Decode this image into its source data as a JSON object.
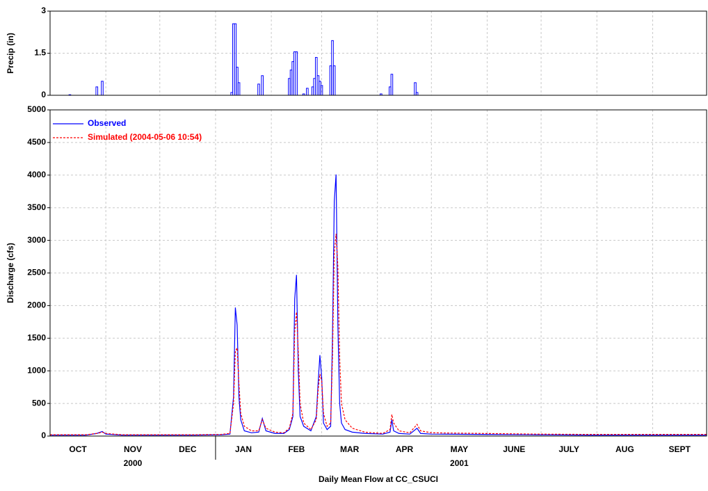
{
  "chart_data": [
    {
      "type": "bar",
      "ylabel": "Precip (in)",
      "color": "#0000ff",
      "x": [
        11,
        26,
        29,
        101,
        102,
        103,
        104,
        105,
        116,
        118,
        133,
        134,
        135,
        136,
        137,
        141,
        143,
        146,
        147,
        148,
        149,
        150,
        151,
        156,
        157,
        158,
        184,
        189,
        190,
        203,
        204
      ],
      "values": [
        0.02,
        0.3,
        0.5,
        0.1,
        2.55,
        2.55,
        1.0,
        0.45,
        0.4,
        0.7,
        0.6,
        0.9,
        1.2,
        1.55,
        1.55,
        0.05,
        0.25,
        0.3,
        0.6,
        1.35,
        0.7,
        0.5,
        0.35,
        1.05,
        1.95,
        1.05,
        0.05,
        0.3,
        0.75,
        0.45,
        0.1
      ],
      "xlim": [
        0,
        365
      ],
      "ylim": [
        0,
        3
      ],
      "yticks": [
        0,
        1.5,
        3
      ],
      "xgrid": [
        31,
        61,
        92,
        123,
        151,
        182,
        212,
        243,
        273,
        304,
        335
      ],
      "grid": true
    },
    {
      "type": "line",
      "title": "Daily Mean Flow at CC_CSUCI",
      "ylabel": "Discharge (cfs)",
      "x": [
        0,
        10,
        20,
        26,
        29,
        31,
        40,
        60,
        80,
        95,
        100,
        102,
        103,
        104,
        105,
        106,
        108,
        112,
        116,
        118,
        120,
        125,
        130,
        133,
        135,
        136,
        137,
        138,
        139,
        141,
        145,
        148,
        149,
        150,
        151,
        152,
        154,
        156,
        157,
        158,
        159,
        160,
        161,
        162,
        164,
        168,
        175,
        185,
        189,
        190,
        191,
        194,
        200,
        204,
        206,
        212,
        240,
        270,
        300,
        330,
        365
      ],
      "series": [
        {
          "name": "Observed",
          "color": "#0000ff",
          "dashed": false,
          "values": [
            15,
            15,
            15,
            40,
            70,
            30,
            15,
            15,
            15,
            20,
            30,
            600,
            1970,
            1700,
            600,
            250,
            80,
            50,
            60,
            270,
            80,
            40,
            40,
            100,
            300,
            2100,
            2470,
            1000,
            300,
            150,
            80,
            300,
            800,
            1240,
            900,
            200,
            100,
            150,
            1500,
            3600,
            4010,
            1700,
            500,
            200,
            100,
            60,
            40,
            30,
            60,
            250,
            80,
            40,
            30,
            120,
            40,
            30,
            25,
            20,
            15,
            15,
            15
          ]
        },
        {
          "name": "Simulated (2004-05-06 10:54)",
          "color": "#ff0000",
          "dashed": true,
          "values": [
            20,
            20,
            20,
            40,
            60,
            40,
            20,
            20,
            20,
            25,
            40,
            500,
            1300,
            1350,
            800,
            350,
            150,
            80,
            80,
            250,
            120,
            60,
            50,
            120,
            350,
            1600,
            1900,
            1300,
            500,
            200,
            100,
            250,
            700,
            950,
            850,
            350,
            150,
            200,
            1200,
            2800,
            3100,
            2600,
            1200,
            500,
            250,
            120,
            60,
            40,
            100,
            330,
            200,
            80,
            50,
            180,
            80,
            50,
            40,
            30,
            25,
            25,
            25
          ]
        }
      ],
      "xlim": [
        0,
        365
      ],
      "ylim": [
        0,
        5000
      ],
      "yticks": [
        0,
        500,
        1000,
        1500,
        2000,
        2500,
        3000,
        3500,
        4000,
        4500,
        5000
      ],
      "xticks": [
        {
          "value": 15.5,
          "label": "OCT"
        },
        {
          "value": 46,
          "label": "NOV"
        },
        {
          "value": 76.5,
          "label": "DEC"
        },
        {
          "value": 107.5,
          "label": "JAN"
        },
        {
          "value": 137,
          "label": "FEB"
        },
        {
          "value": 166.5,
          "label": "MAR"
        },
        {
          "value": 197,
          "label": "APR"
        },
        {
          "value": 227.5,
          "label": "MAY"
        },
        {
          "value": 258,
          "label": "JUNE"
        },
        {
          "value": 288.5,
          "label": "JULY"
        },
        {
          "value": 319.5,
          "label": "AUG"
        },
        {
          "value": 350,
          "label": "SEPT"
        }
      ],
      "xgrid": [
        31,
        61,
        92,
        123,
        151,
        182,
        212,
        243,
        273,
        304,
        335
      ],
      "year_labels": [
        {
          "value": 46,
          "label": "2000"
        },
        {
          "value": 227.5,
          "label": "2001"
        }
      ],
      "year_break": 92,
      "legend": "upper left",
      "grid": true
    }
  ]
}
